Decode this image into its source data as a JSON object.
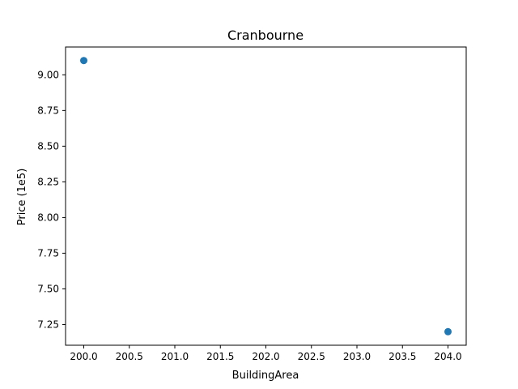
{
  "chart_data": {
    "type": "scatter",
    "title": "Cranbourne",
    "xlabel": "BuildingArea",
    "ylabel": "Price (1e5)",
    "xlim": [
      199.8,
      204.2
    ],
    "ylim": [
      7.105,
      9.195
    ],
    "xticks": [
      200.0,
      200.5,
      201.0,
      201.5,
      202.0,
      202.5,
      203.0,
      203.5,
      204.0
    ],
    "xtick_labels": [
      "200.0",
      "200.5",
      "201.0",
      "201.5",
      "202.0",
      "202.5",
      "203.0",
      "203.5",
      "204.0"
    ],
    "yticks": [
      7.25,
      7.5,
      7.75,
      8.0,
      8.25,
      8.5,
      8.75,
      9.0
    ],
    "ytick_labels": [
      "7.25",
      "7.50",
      "7.75",
      "8.00",
      "8.25",
      "8.50",
      "8.75",
      "9.00"
    ],
    "points": [
      {
        "x": 200.0,
        "y": 9.1
      },
      {
        "x": 204.0,
        "y": 7.2
      }
    ],
    "marker_color": "#1f77b4",
    "grid": false,
    "legend": "none"
  }
}
